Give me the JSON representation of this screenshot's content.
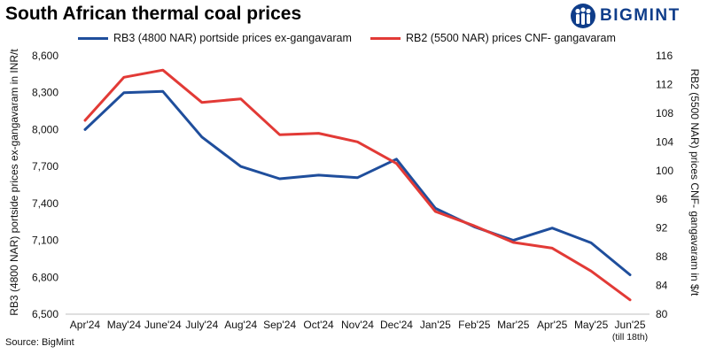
{
  "header": {
    "title": "South African thermal coal prices",
    "brand": "BIGMINT"
  },
  "colors": {
    "rb3": "#1f4e9c",
    "rb2": "#e23a36",
    "axis": "#bfbfbf",
    "brand": "#0f3d8a"
  },
  "source": "Source: BigMint",
  "chart_data": {
    "type": "line",
    "categories": [
      "Apr'24",
      "May'24",
      "June'24",
      "July'24",
      "Aug'24",
      "Sep'24",
      "Oct'24",
      "Nov'24",
      "Dec'24",
      "Jan'25",
      "Feb'25",
      "Mar'25",
      "Apr'25",
      "May'25",
      "Jun'25"
    ],
    "category_notes": [
      "",
      "",
      "",
      "",
      "",
      "",
      "",
      "",
      "",
      "",
      "",
      "",
      "",
      "",
      "(till 18th)"
    ],
    "series": [
      {
        "name": "RB3 (4800 NAR) portside prices ex-gangavaram",
        "axis": "left",
        "color": "#1f4e9c",
        "values": [
          8000,
          8300,
          8310,
          7940,
          7700,
          7600,
          7630,
          7610,
          7760,
          7360,
          7210,
          7100,
          7200,
          7080,
          6820
        ]
      },
      {
        "name": "RB2 (5500 NAR) prices CNF- gangavaram",
        "axis": "right",
        "color": "#e23a36",
        "values": [
          107,
          113,
          114,
          109.5,
          110,
          105,
          105.2,
          104,
          101,
          94.3,
          92.3,
          90,
          89.2,
          86,
          82
        ]
      }
    ],
    "ylabel_left": "RB3 (4800 NAR) portside prices ex-gangavaram  in INR/t",
    "ylabel_right": "RB2 (5500 NAR) prices CNF- gangavaram  in $/t",
    "ylim_left": [
      6500,
      8600
    ],
    "yticks_left": [
      "6,500",
      "6,800",
      "7,100",
      "7,400",
      "7,700",
      "8,000",
      "8,300",
      "8,600"
    ],
    "ylim_right": [
      80,
      116
    ],
    "yticks_right": [
      "80",
      "84",
      "88",
      "92",
      "96",
      "100",
      "104",
      "108",
      "112",
      "116"
    ],
    "legend_position": "top",
    "grid": false
  }
}
